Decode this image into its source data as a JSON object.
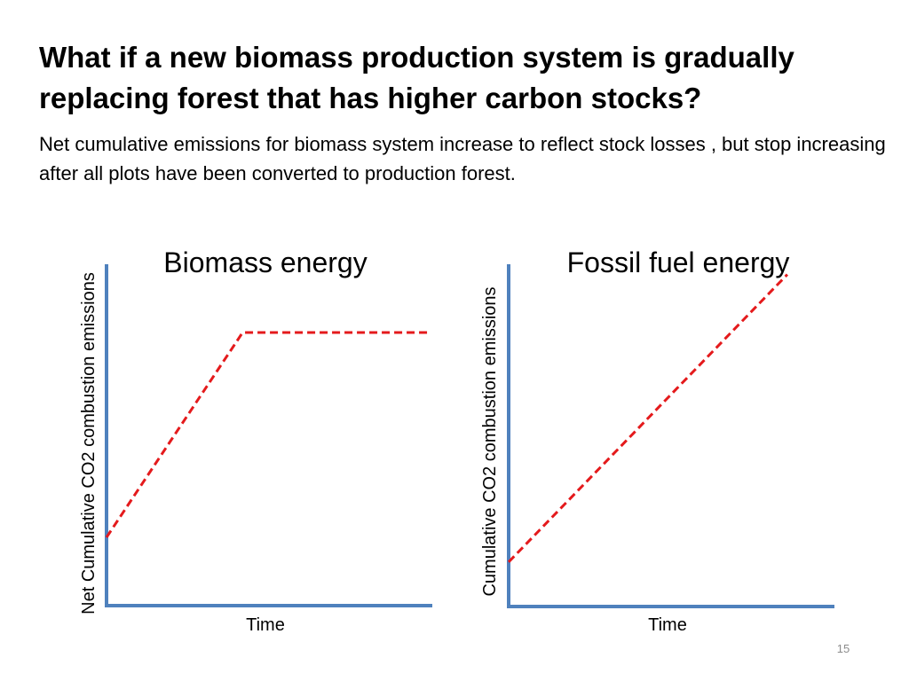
{
  "slide": {
    "title": "What if a new biomass production system is gradually replacing forest that has higher carbon stocks?",
    "subtitle": "Net cumulative emissions for biomass system increase to reflect stock losses , but stop increasing after all plots have been converted to production forest.",
    "page_number": "15"
  },
  "colors": {
    "axis": "#4f81bd",
    "series": "#e41a1c"
  },
  "chart_data": [
    {
      "type": "line",
      "title": "Biomass energy",
      "xlabel": "Time",
      "ylabel": "Net Cumulative CO2 combustion emissions",
      "xlim": [
        0,
        1
      ],
      "ylim": [
        0,
        1
      ],
      "grid": false,
      "axis_ticks": false,
      "series": [
        {
          "style": "dashed",
          "color": "#e41a1c",
          "points": [
            [
              0,
              0.2
            ],
            [
              0.42,
              0.8
            ],
            [
              1,
              0.8
            ]
          ]
        }
      ]
    },
    {
      "type": "line",
      "title": "Fossil fuel energy",
      "xlabel": "Time",
      "ylabel": "Cumulative CO2 combustion emissions",
      "xlim": [
        0,
        1
      ],
      "ylim": [
        0,
        1
      ],
      "grid": false,
      "axis_ticks": false,
      "series": [
        {
          "style": "dashed",
          "color": "#e41a1c",
          "points": [
            [
              0,
              0.13
            ],
            [
              0.86,
              0.97
            ]
          ]
        }
      ]
    }
  ]
}
